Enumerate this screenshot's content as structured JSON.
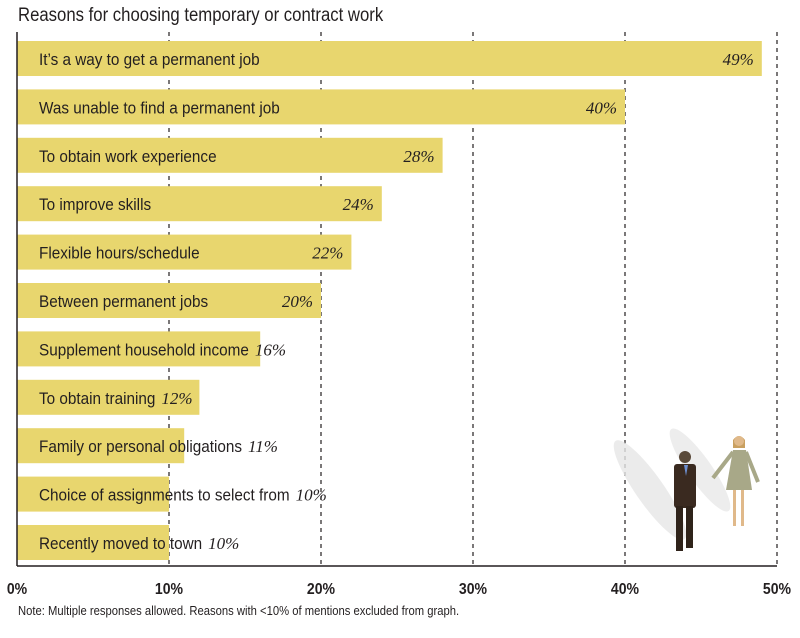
{
  "chart_data": {
    "type": "bar",
    "orientation": "horizontal",
    "title": "Reasons for choosing temporary or contract work",
    "categories": [
      "It’s a way to get a permanent job",
      "Was unable to find a permanent job",
      "To obtain work experience",
      "To improve skills",
      "Flexible hours/schedule",
      "Between permanent jobs",
      "Supplement household income",
      "To obtain training",
      "Family or personal obligations",
      "Choice of assignments to select from",
      "Recently moved to town"
    ],
    "values": [
      49,
      40,
      28,
      24,
      22,
      20,
      16,
      12,
      11,
      10,
      10
    ],
    "value_labels": [
      "49%",
      "40%",
      "28%",
      "24%",
      "22%",
      "20%",
      "16%",
      "12%",
      "11%",
      "10%",
      "10%"
    ],
    "xlim": [
      0,
      50
    ],
    "x_ticks": [
      0,
      10,
      20,
      30,
      40,
      50
    ],
    "x_tick_labels": [
      "0%",
      "10%",
      "20%",
      "30%",
      "40%",
      "50%"
    ],
    "grid": "vertical dashed",
    "bar_color": "#e8d66e",
    "note": "Note: Multiple responses allowed. Reasons with <10% of mentions excluded from graph."
  }
}
